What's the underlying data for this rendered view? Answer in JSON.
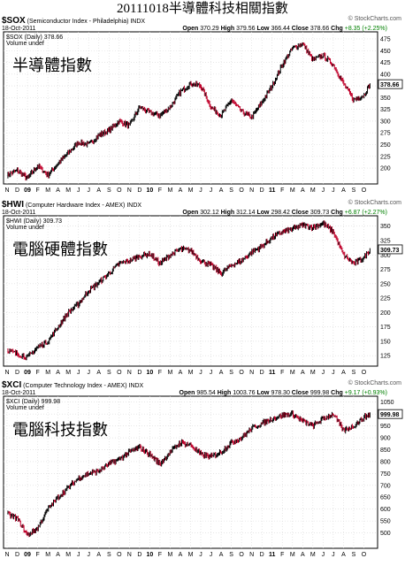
{
  "title": "20111018半導體科技相關指數",
  "source": "© StockCharts.com",
  "chart_data": [
    {
      "type": "bar",
      "symbol": "$SOX",
      "name": "(Semiconductor Index - Philadelphia)",
      "exchange": "INDX",
      "date": "18-Oct-2011",
      "legend": "$SOX (Daily) 378.66",
      "volume_legend": "Volume undef",
      "ohlc": {
        "Open": "370.29",
        "High": "379.56",
        "Low": "366.44",
        "Close": "378.66",
        "Chg": "+8.35 (+2.25%)"
      },
      "last_label": "378.66",
      "annotation": "半導體指數",
      "ylim": [
        170,
        490
      ],
      "yticks": [
        200,
        225,
        250,
        275,
        300,
        325,
        350,
        375,
        400,
        425,
        450,
        475
      ],
      "xticks": [
        "N",
        "D",
        "09",
        "F",
        "M",
        "A",
        "M",
        "J",
        "J",
        "A",
        "S",
        "O",
        "N",
        "D",
        "10",
        "F",
        "M",
        "A",
        "M",
        "J",
        "J",
        "A",
        "S",
        "O",
        "N",
        "D",
        "11",
        "F",
        "M",
        "A",
        "M",
        "J",
        "J",
        "A",
        "S",
        "O"
      ],
      "series": [
        {
          "x": [
            0,
            1,
            2,
            3,
            4,
            5,
            6,
            7,
            8,
            9,
            10,
            11,
            12,
            13,
            14,
            15,
            16,
            17,
            18,
            19,
            20,
            21,
            22,
            23,
            24,
            25,
            26,
            27,
            28,
            29,
            30,
            31,
            32,
            33,
            34,
            35,
            35.6
          ],
          "values": [
            185,
            195,
            178,
            205,
            185,
            210,
            232,
            255,
            250,
            270,
            280,
            300,
            290,
            330,
            318,
            312,
            330,
            362,
            380,
            375,
            330,
            312,
            345,
            320,
            308,
            340,
            375,
            420,
            455,
            465,
            430,
            440,
            420,
            380,
            345,
            355,
            378.66
          ]
        }
      ]
    },
    {
      "type": "bar",
      "symbol": "$HWI",
      "name": "(Computer Hardware Index - AMEX)",
      "exchange": "INDX",
      "date": "18-Oct-2011",
      "legend": "$HWI (Daily) 309.73",
      "volume_legend": "Volume undef",
      "ohlc": {
        "Open": "302.12",
        "High": "312.14",
        "Low": "298.42",
        "Close": "309.73",
        "Chg": "+6.87 (+2.27%)"
      },
      "last_label": "309.73",
      "annotation": "電腦硬體指數",
      "ylim": [
        110,
        368
      ],
      "yticks": [
        125,
        150,
        175,
        200,
        225,
        250,
        275,
        300,
        325,
        350
      ],
      "xticks": [
        "N",
        "D",
        "09",
        "F",
        "M",
        "A",
        "M",
        "J",
        "J",
        "A",
        "S",
        "O",
        "N",
        "D",
        "10",
        "F",
        "M",
        "A",
        "M",
        "J",
        "J",
        "A",
        "S",
        "O",
        "N",
        "D",
        "11",
        "F",
        "M",
        "A",
        "M",
        "J",
        "J",
        "A",
        "S",
        "O"
      ],
      "series": [
        {
          "x": [
            0,
            1,
            2,
            3,
            4,
            5,
            6,
            7,
            8,
            9,
            10,
            11,
            12,
            13,
            14,
            15,
            16,
            17,
            18,
            19,
            20,
            21,
            22,
            23,
            24,
            25,
            26,
            27,
            28,
            29,
            30,
            31,
            32,
            33,
            34,
            35,
            35.6
          ],
          "values": [
            135,
            128,
            122,
            140,
            150,
            175,
            200,
            215,
            238,
            252,
            268,
            285,
            290,
            298,
            302,
            285,
            300,
            310,
            308,
            290,
            282,
            268,
            282,
            290,
            305,
            315,
            330,
            340,
            345,
            352,
            348,
            355,
            340,
            300,
            285,
            295,
            309.73
          ]
        }
      ]
    },
    {
      "type": "bar",
      "symbol": "$XCI",
      "name": "(Computer Technology Index - AMEX)",
      "exchange": "INDX",
      "date": "18-Oct-2011",
      "legend": "$XCI (Daily) 999.98",
      "volume_legend": "Volume undef",
      "ohlc": {
        "Open": "985.54",
        "High": "1003.76",
        "Low": "978.30",
        "Close": "999.98",
        "Chg": "+9.17 (+0.93%)"
      },
      "last_label": "999.98",
      "annotation": "電腦科技指數",
      "ylim": [
        450,
        1075
      ],
      "yticks": [
        500,
        550,
        600,
        650,
        700,
        750,
        800,
        850,
        900,
        950,
        1000,
        1050
      ],
      "xticks": [
        "N",
        "D",
        "09",
        "F",
        "M",
        "A",
        "M",
        "J",
        "J",
        "A",
        "S",
        "O",
        "N",
        "D",
        "10",
        "F",
        "M",
        "A",
        "M",
        "J",
        "J",
        "A",
        "S",
        "O",
        "N",
        "D",
        "11",
        "F",
        "M",
        "A",
        "M",
        "J",
        "J",
        "A",
        "S",
        "O"
      ],
      "series": [
        {
          "x": [
            0,
            1,
            2,
            3,
            4,
            5,
            6,
            7,
            8,
            9,
            10,
            11,
            12,
            13,
            14,
            15,
            16,
            17,
            18,
            19,
            20,
            21,
            22,
            23,
            24,
            25,
            26,
            27,
            28,
            29,
            30,
            31,
            32,
            33,
            34,
            35,
            35.6
          ],
          "values": [
            580,
            560,
            490,
            520,
            600,
            650,
            690,
            730,
            750,
            760,
            790,
            810,
            840,
            860,
            830,
            790,
            840,
            880,
            870,
            830,
            820,
            840,
            880,
            900,
            940,
            960,
            980,
            995,
            1000,
            970,
            950,
            980,
            1000,
            930,
            950,
            985,
            999.98
          ]
        }
      ]
    }
  ]
}
